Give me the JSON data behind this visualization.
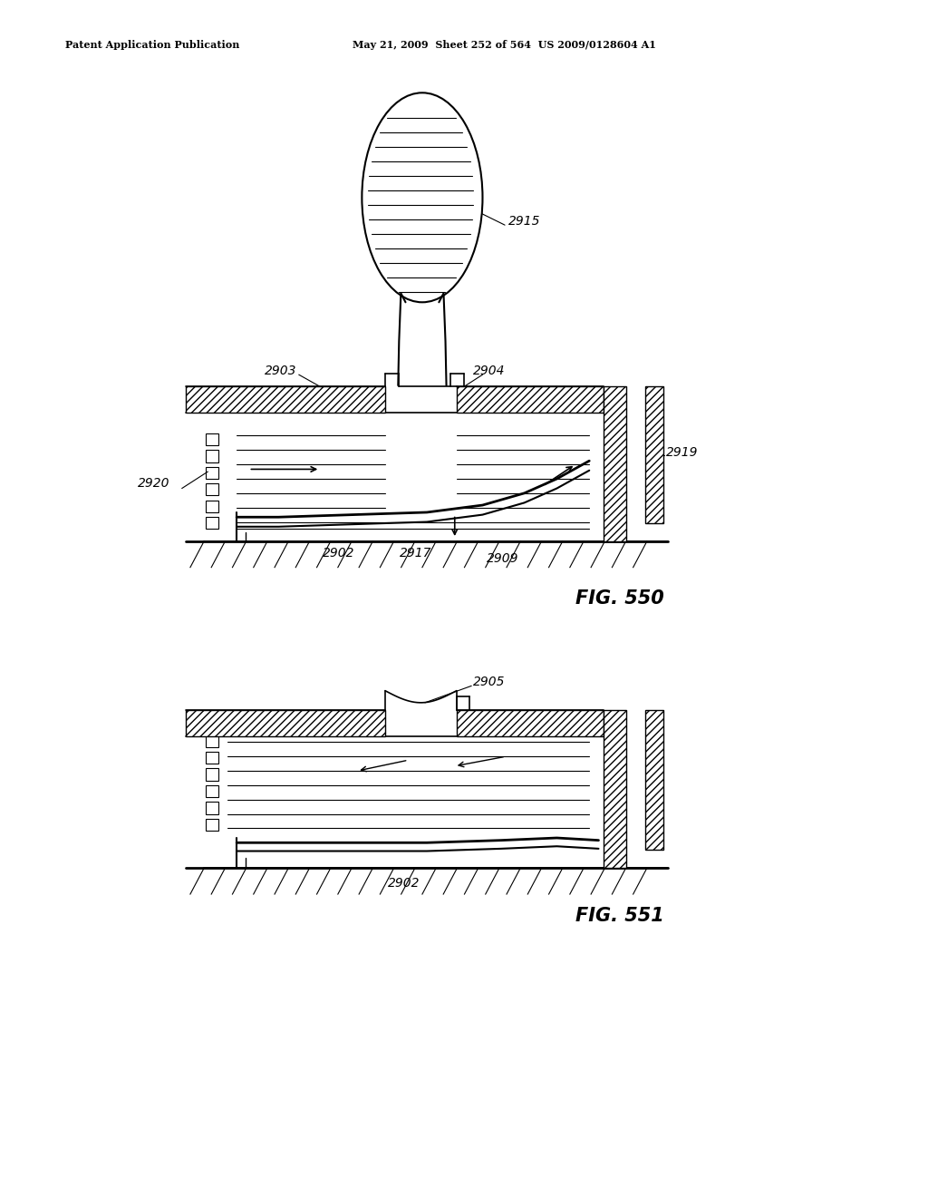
{
  "bg_color": "#ffffff",
  "header_text": "Patent Application Publication",
  "header_date": "May 21, 2009  Sheet 252 of 564  US 2009/0128604 A1",
  "fig550_label": "FIG. 550",
  "fig551_label": "FIG. 551"
}
